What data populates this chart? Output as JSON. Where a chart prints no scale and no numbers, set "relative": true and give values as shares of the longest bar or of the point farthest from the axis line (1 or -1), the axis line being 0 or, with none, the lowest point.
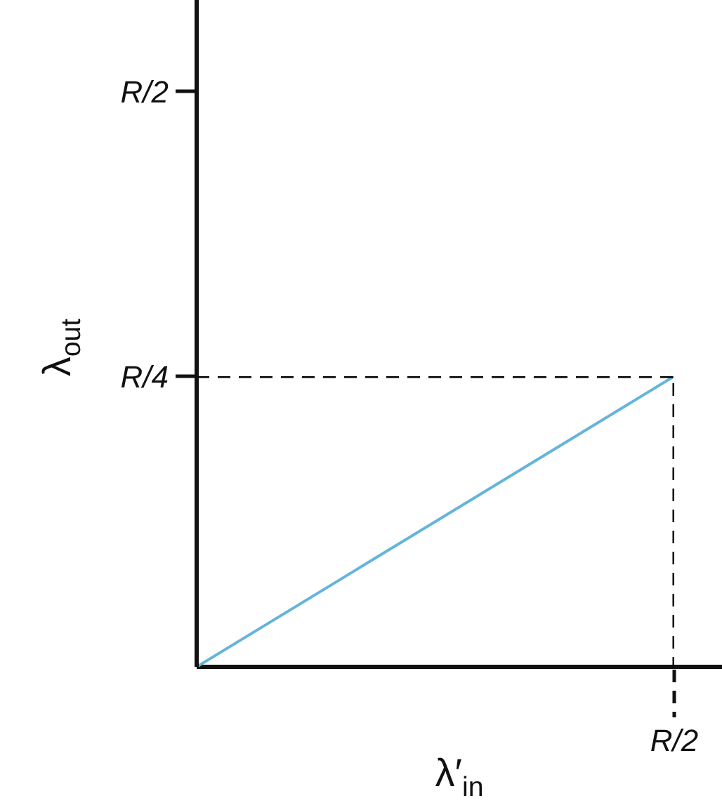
{
  "chart_data": {
    "type": "line",
    "relative": true,
    "xlabel": "λ′$_{in}$",
    "ylabel": "λ$_{out}$",
    "categories": [
      null,
      null
    ],
    "series": [
      {
        "values": [
          0,
          1
        ],
        "color": "#64b4dc"
      },
      {
        "type": "step",
        "values": [
          1,
          0
        ],
        "color": "#000000",
        "line_style": "dashed"
      }
    ],
    "ref_lines": [
      {
        "axis": "y",
        "value": 0,
        "color": "#111111",
        "line_style": "solid"
      }
    ],
    "annotations": [
      "R/2",
      "R/4",
      "R/2"
    ],
    "marker": "none"
  }
}
